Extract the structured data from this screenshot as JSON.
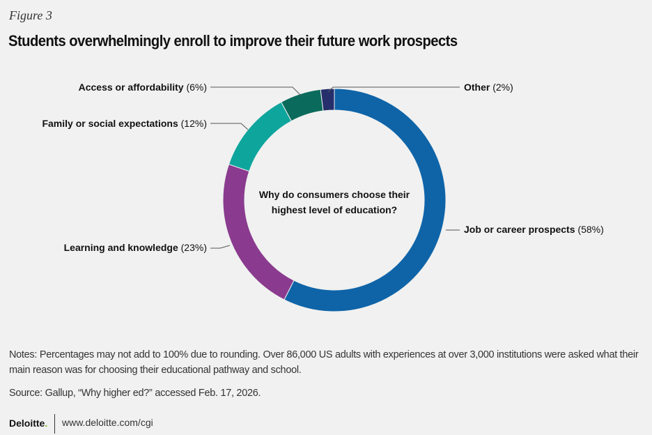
{
  "figure_label": "Figure 3",
  "title": "Students overwhelmingly enroll to improve their future work prospects",
  "chart_data": {
    "type": "pie",
    "donut": true,
    "center_label": [
      "Why do consumers choose their",
      "highest level of education?"
    ],
    "slices": [
      {
        "label": "Job or career prospects (58%)",
        "value": 58,
        "color": "#0f64a8"
      },
      {
        "label": "Learning and knowledge (23%)",
        "value": 23,
        "color": "#8a3b8f"
      },
      {
        "label": "Family or social expectations (12%)",
        "value": 12,
        "color": "#0ea59d"
      },
      {
        "label": "Access or affordability (6%)",
        "value": 6,
        "color": "#0a6b5c"
      },
      {
        "label": "Other (2%)",
        "value": 2,
        "color": "#262f6c"
      }
    ]
  },
  "notes": "Notes: Percentages may not add to 100% due to rounding. Over 86,000 US adults with experiences at over 3,000 institutions were asked what their main reason was for choosing their educational pathway and school.",
  "source": "Source: Gallup, “Why higher ed?” accessed Feb. 17, 2026.",
  "footer": {
    "brand": "Deloitte",
    "brand_dot": ".",
    "url": "www.deloitte.com/cgi"
  }
}
